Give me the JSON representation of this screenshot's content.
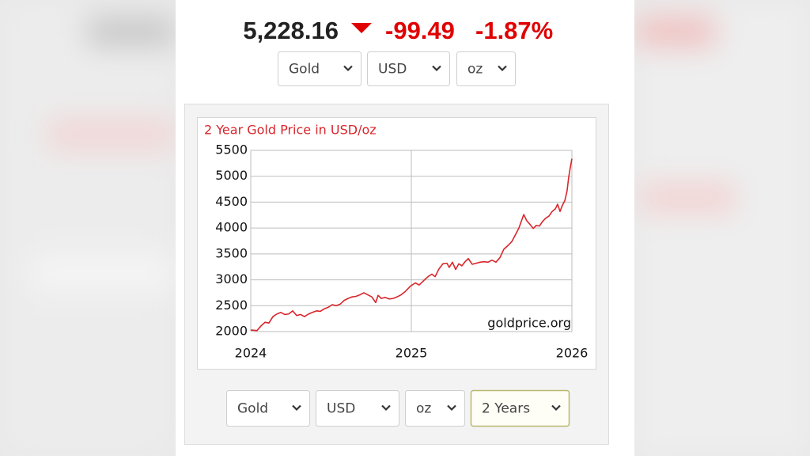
{
  "header": {
    "price": "5,228.16",
    "change": "-99.49",
    "change_pct": "-1.87%"
  },
  "top_selects": [
    "Gold",
    "USD",
    "oz"
  ],
  "bottom_selects": [
    "Gold",
    "USD",
    "oz",
    "2 Years"
  ],
  "chart_data": {
    "type": "line",
    "title": "2 Year Gold Price in USD/oz",
    "source": "goldprice.org",
    "x": [
      2024,
      2024.039,
      2024.064,
      2024.089,
      2024.113,
      2024.138,
      2024.163,
      2024.187,
      2024.212,
      2024.236,
      2024.261,
      2024.286,
      2024.31,
      2024.335,
      2024.36,
      2024.384,
      2024.409,
      2024.433,
      2024.458,
      2024.483,
      2024.507,
      2024.532,
      2024.557,
      2024.581,
      2024.606,
      2024.631,
      2024.655,
      2024.68,
      2024.704,
      2024.729,
      2024.754,
      2024.778,
      2024.793,
      2024.813,
      2024.837,
      2024.862,
      2024.887,
      2024.911,
      2024.936,
      2024.961,
      2024.995,
      2025.025,
      2025.049,
      2025.069,
      2025.089,
      2025.108,
      2025.128,
      2025.148,
      2025.172,
      2025.197,
      2025.222,
      2025.236,
      2025.256,
      2025.276,
      2025.296,
      2025.315,
      2025.335,
      2025.355,
      2025.379,
      2025.404,
      2025.429,
      2025.453,
      2025.478,
      2025.502,
      2025.527,
      2025.552,
      2025.576,
      2025.601,
      2025.626,
      2025.65,
      2025.67,
      2025.685,
      2025.7,
      2025.719,
      2025.739,
      2025.759,
      2025.778,
      2025.798,
      2025.818,
      2025.837,
      2025.857,
      2025.877,
      2025.897,
      2025.911,
      2025.926,
      2025.941,
      2025.956,
      2025.97,
      2025.98,
      2025.99,
      2026
    ],
    "series": [
      {
        "name": "Gold",
        "color": "#d9262b",
        "values": [
          2030,
          2020,
          2110,
          2180,
          2165,
          2290,
          2340,
          2370,
          2330,
          2340,
          2400,
          2310,
          2330,
          2290,
          2340,
          2370,
          2400,
          2390,
          2440,
          2470,
          2520,
          2500,
          2530,
          2600,
          2640,
          2670,
          2680,
          2710,
          2750,
          2710,
          2670,
          2560,
          2700,
          2640,
          2660,
          2630,
          2640,
          2670,
          2710,
          2770,
          2880,
          2940,
          2900,
          2960,
          3020,
          3070,
          3110,
          3060,
          3210,
          3310,
          3320,
          3240,
          3340,
          3200,
          3310,
          3270,
          3350,
          3410,
          3300,
          3320,
          3340,
          3350,
          3340,
          3380,
          3340,
          3430,
          3590,
          3660,
          3740,
          3880,
          4000,
          4130,
          4260,
          4140,
          4070,
          3990,
          4050,
          4040,
          4130,
          4190,
          4230,
          4320,
          4370,
          4460,
          4320,
          4440,
          4530,
          4720,
          4980,
          5170,
          5340
        ]
      }
    ],
    "xlim": [
      2024,
      2026
    ],
    "xticks": [
      2024,
      2025,
      2026
    ],
    "ylim": [
      2000,
      5500
    ],
    "yticks": [
      2000,
      2500,
      3000,
      3500,
      4000,
      4500,
      5000,
      5500
    ],
    "grid": true
  }
}
